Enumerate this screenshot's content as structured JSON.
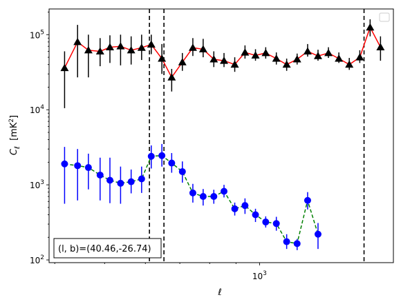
{
  "chart_data": {
    "type": "scatter",
    "xlabel": "ℓ",
    "ylabel_symbol": "C",
    "ylabel_subscript": "ℓ",
    "ylabel_unit_open": "[mK",
    "ylabel_unit_sup": "2",
    "ylabel_unit_close": "]",
    "xscale": "log",
    "yscale": "log",
    "xlim": [
      390,
      1820
    ],
    "ylim": [
      92,
      220000
    ],
    "x_tick_labels": [
      {
        "value": 1000,
        "base": "10",
        "exp": "3"
      }
    ],
    "y_tick_labels": [
      {
        "value": 100,
        "base": "10",
        "exp": "2"
      },
      {
        "value": 1000,
        "base": "10",
        "exp": "3"
      },
      {
        "value": 10000,
        "base": "10",
        "exp": "4"
      },
      {
        "value": 100000,
        "base": "10",
        "exp": "5"
      }
    ],
    "grid": false,
    "legend": "top-right, empty",
    "annotation": "(l, b)=(40.46,-26.74)",
    "vlines": [
      611,
      652,
      1596
    ],
    "series": [
      {
        "color": "#ff0000",
        "marker": "triangle",
        "marker_color": "#000000",
        "error_color": "#000000",
        "linestyle": "solid",
        "x": [
          418,
          443,
          465,
          490,
          512,
          537,
          563,
          590,
          616,
          646,
          675,
          708,
          742,
          777,
          815,
          853,
          895,
          937,
          982,
          1028,
          1078,
          1129,
          1183,
          1240,
          1299,
          1361,
          1426,
          1494,
          1566,
          1640,
          1718
        ],
        "y": [
          36000,
          80000,
          62000,
          60000,
          68000,
          70000,
          62000,
          67000,
          74000,
          48000,
          27000,
          43000,
          67000,
          64000,
          47000,
          45000,
          40000,
          58000,
          53000,
          57000,
          48000,
          40000,
          47000,
          60000,
          52000,
          57000,
          48000,
          40000,
          50000,
          125000,
          68000
        ],
        "yerr_low": [
          10500,
          27000,
          27000,
          38000,
          42000,
          39000,
          40000,
          46000,
          55000,
          30000,
          17500,
          33000,
          52000,
          50000,
          37000,
          37000,
          32000,
          48000,
          45000,
          48000,
          40000,
          33000,
          40000,
          51000,
          45000,
          49000,
          42000,
          34000,
          42000,
          95000,
          45000
        ],
        "yerr_high": [
          60000,
          135000,
          100000,
          90000,
          98000,
          100000,
          95000,
          100000,
          100000,
          75000,
          35000,
          57000,
          90000,
          88000,
          60000,
          57000,
          50000,
          72000,
          64000,
          68000,
          58000,
          48000,
          56000,
          75000,
          63000,
          68000,
          58000,
          49000,
          62000,
          160000,
          95000
        ]
      },
      {
        "color": "#008000",
        "marker": "circle",
        "marker_color": "#0000ff",
        "error_color": "#0000ff",
        "linestyle": "dashed",
        "x": [
          418,
          443,
          465,
          490,
          512,
          537,
          563,
          590,
          616,
          646,
          675,
          708,
          742,
          777,
          815,
          853,
          895,
          937,
          982,
          1028,
          1078,
          1129,
          1183,
          1240,
          1299,
          1361,
          1426,
          1494,
          1566,
          1640,
          1718
        ],
        "y": [
          1900,
          1800,
          1700,
          1350,
          1150,
          1050,
          1100,
          1200,
          2400,
          2450,
          1950,
          1500,
          780,
          700,
          700,
          820,
          480,
          530,
          400,
          320,
          305,
          175,
          165,
          620,
          220,
          0,
          0,
          0,
          0,
          0,
          0
        ],
        "yerr_low": [
          560,
          620,
          870,
          620,
          570,
          560,
          770,
          780,
          1650,
          1750,
          1450,
          1070,
          580,
          530,
          560,
          680,
          390,
          410,
          320,
          270,
          245,
          140,
          135,
          470,
          140,
          0,
          0,
          0,
          0,
          0,
          0
        ],
        "yerr_high": [
          3200,
          3000,
          2600,
          2300,
          2300,
          1750,
          1600,
          1750,
          3350,
          3500,
          2650,
          2050,
          1030,
          880,
          860,
          1000,
          580,
          660,
          480,
          380,
          375,
          220,
          190,
          800,
          310,
          0,
          0,
          0,
          0,
          0,
          0
        ]
      }
    ]
  }
}
